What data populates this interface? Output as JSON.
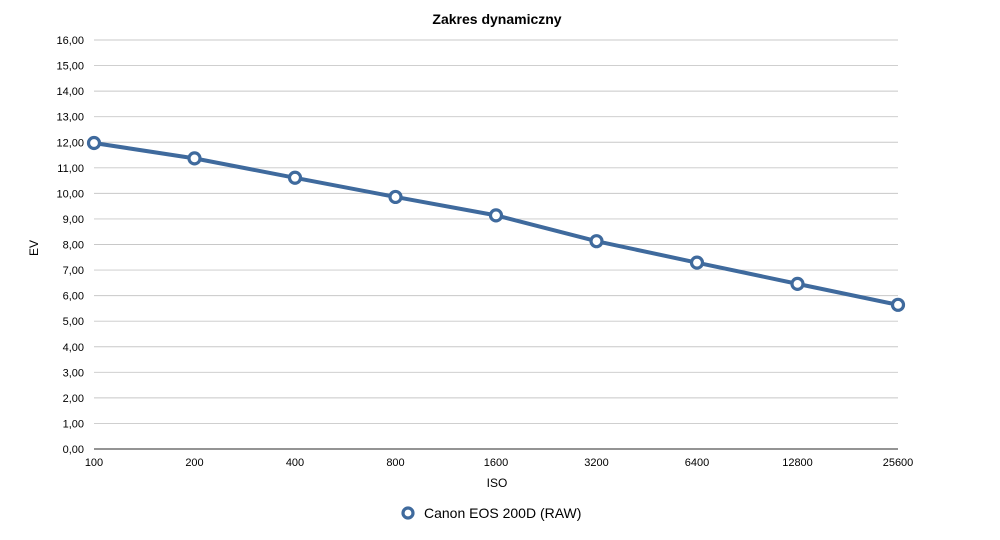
{
  "chart_data": {
    "type": "line",
    "title": "Zakres dynamiczny",
    "xlabel": "ISO",
    "ylabel": "EV",
    "categories": [
      "100",
      "200",
      "400",
      "800",
      "1600",
      "3200",
      "6400",
      "12800",
      "25600"
    ],
    "yticks": [
      "0,00",
      "1,00",
      "2,00",
      "3,00",
      "4,00",
      "5,00",
      "6,00",
      "7,00",
      "8,00",
      "9,00",
      "10,00",
      "11,00",
      "12,00",
      "13,00",
      "14,00",
      "15,00",
      "16,00"
    ],
    "ylim": [
      0,
      16
    ],
    "grid": true,
    "legend_position": "bottom",
    "series": [
      {
        "name": "Canon EOS 200D (RAW)",
        "color": "#3f6a9d",
        "values": [
          11.97,
          11.37,
          10.61,
          9.86,
          9.14,
          8.13,
          7.29,
          6.46,
          5.64
        ]
      }
    ]
  }
}
